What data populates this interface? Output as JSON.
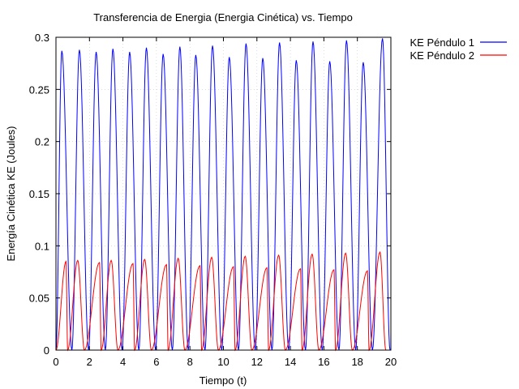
{
  "chart_data": {
    "type": "line",
    "title": "Transferencia de Energia (Energia Cinética) vs. Tiempo",
    "xlabel": "Tiempo (t)",
    "ylabel": "Energía Cinética KE (Joules)",
    "xlim": [
      0,
      20
    ],
    "ylim": [
      0,
      0.3
    ],
    "xticks": [
      "0",
      "2",
      "4",
      "6",
      "8",
      "10",
      "12",
      "14",
      "16",
      "18",
      "20"
    ],
    "yticks": [
      "0",
      "0.05",
      "0.1",
      "0.15",
      "0.2",
      "0.25",
      "0.3"
    ],
    "grid": true,
    "legend_position": "top-right-outside",
    "colors": {
      "axis": "#000000",
      "grid": "#c8c8c8"
    },
    "series": [
      {
        "name": "KE Péndulo 1",
        "color": "#0000ff",
        "zeros": [
          0,
          0.95,
          1.95,
          2.95,
          3.95,
          4.95,
          5.95,
          6.95,
          7.9,
          8.9,
          9.9,
          10.9,
          11.9,
          12.9,
          13.9,
          14.9,
          15.9,
          16.9,
          17.9,
          18.9,
          19.95
        ],
        "peaks": [
          [
            0.35,
            0.287
          ],
          [
            1.4,
            0.288
          ],
          [
            2.4,
            0.286
          ],
          [
            3.4,
            0.289
          ],
          [
            4.4,
            0.286
          ],
          [
            5.4,
            0.29
          ],
          [
            6.4,
            0.284
          ],
          [
            7.4,
            0.291
          ],
          [
            8.35,
            0.283
          ],
          [
            9.35,
            0.292
          ],
          [
            10.35,
            0.281
          ],
          [
            11.35,
            0.294
          ],
          [
            12.35,
            0.28
          ],
          [
            13.35,
            0.295
          ],
          [
            14.35,
            0.278
          ],
          [
            15.35,
            0.296
          ],
          [
            16.35,
            0.277
          ],
          [
            17.35,
            0.297
          ],
          [
            18.35,
            0.276
          ],
          [
            19.5,
            0.299
          ]
        ]
      },
      {
        "name": "KE Péndulo 2",
        "color": "#ff0000",
        "zeros": [
          0,
          0.7,
          1.7,
          2.7,
          3.7,
          4.7,
          5.7,
          6.7,
          7.7,
          8.7,
          9.7,
          10.7,
          11.7,
          12.7,
          13.7,
          14.7,
          15.7,
          16.7,
          17.7,
          18.7,
          19.7,
          20
        ],
        "peaks": [
          [
            0.6,
            0.085
          ],
          [
            1.3,
            0.086
          ],
          [
            2.6,
            0.084
          ],
          [
            3.3,
            0.086
          ],
          [
            4.6,
            0.083
          ],
          [
            5.3,
            0.087
          ],
          [
            6.6,
            0.082
          ],
          [
            7.3,
            0.088
          ],
          [
            8.6,
            0.081
          ],
          [
            9.3,
            0.089
          ],
          [
            10.6,
            0.08
          ],
          [
            11.3,
            0.09
          ],
          [
            12.6,
            0.079
          ],
          [
            13.3,
            0.091
          ],
          [
            14.6,
            0.078
          ],
          [
            15.3,
            0.092
          ],
          [
            16.6,
            0.077
          ],
          [
            17.3,
            0.093
          ],
          [
            18.6,
            0.076
          ],
          [
            19.35,
            0.094
          ]
        ]
      }
    ]
  }
}
